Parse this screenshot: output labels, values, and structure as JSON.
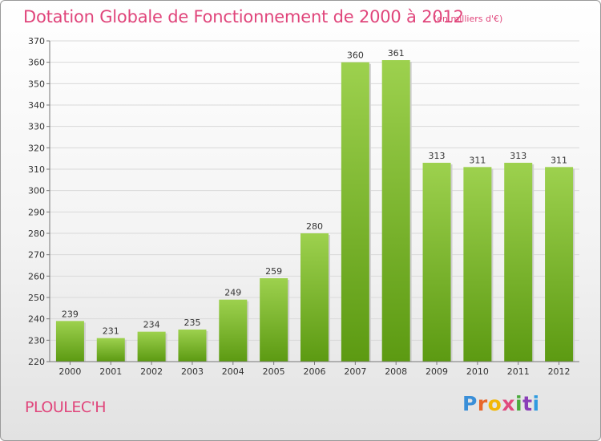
{
  "title": "Dotation Globale de Fonctionnement de 2000 à 2012",
  "unit_note": "(en milliers d'€)",
  "commune": "PLOULEC'H",
  "logo": {
    "text": "Proxiti",
    "colors": [
      "#3a8fd8",
      "#e8662a",
      "#f2b707",
      "#e04a7e",
      "#4aaa3c",
      "#8a3fb8",
      "#2f9be0"
    ]
  },
  "chart_data": {
    "type": "bar",
    "categories": [
      "2000",
      "2001",
      "2002",
      "2003",
      "2004",
      "2005",
      "2006",
      "2007",
      "2008",
      "2009",
      "2010",
      "2011",
      "2012"
    ],
    "values": [
      239,
      231,
      234,
      235,
      249,
      259,
      280,
      360,
      361,
      313,
      311,
      313,
      311
    ],
    "data_labels": [
      "239",
      "231",
      "234",
      "235",
      "249",
      "259",
      "280",
      "360",
      "361",
      "313",
      "311",
      "313",
      "311"
    ],
    "ylim": [
      220,
      370
    ],
    "yticks": [
      220,
      230,
      240,
      250,
      260,
      270,
      280,
      290,
      300,
      310,
      320,
      330,
      340,
      350,
      360,
      370
    ],
    "grid": true,
    "bar_color_top": "#9dd14e",
    "bar_color_bottom": "#5c9a12"
  }
}
